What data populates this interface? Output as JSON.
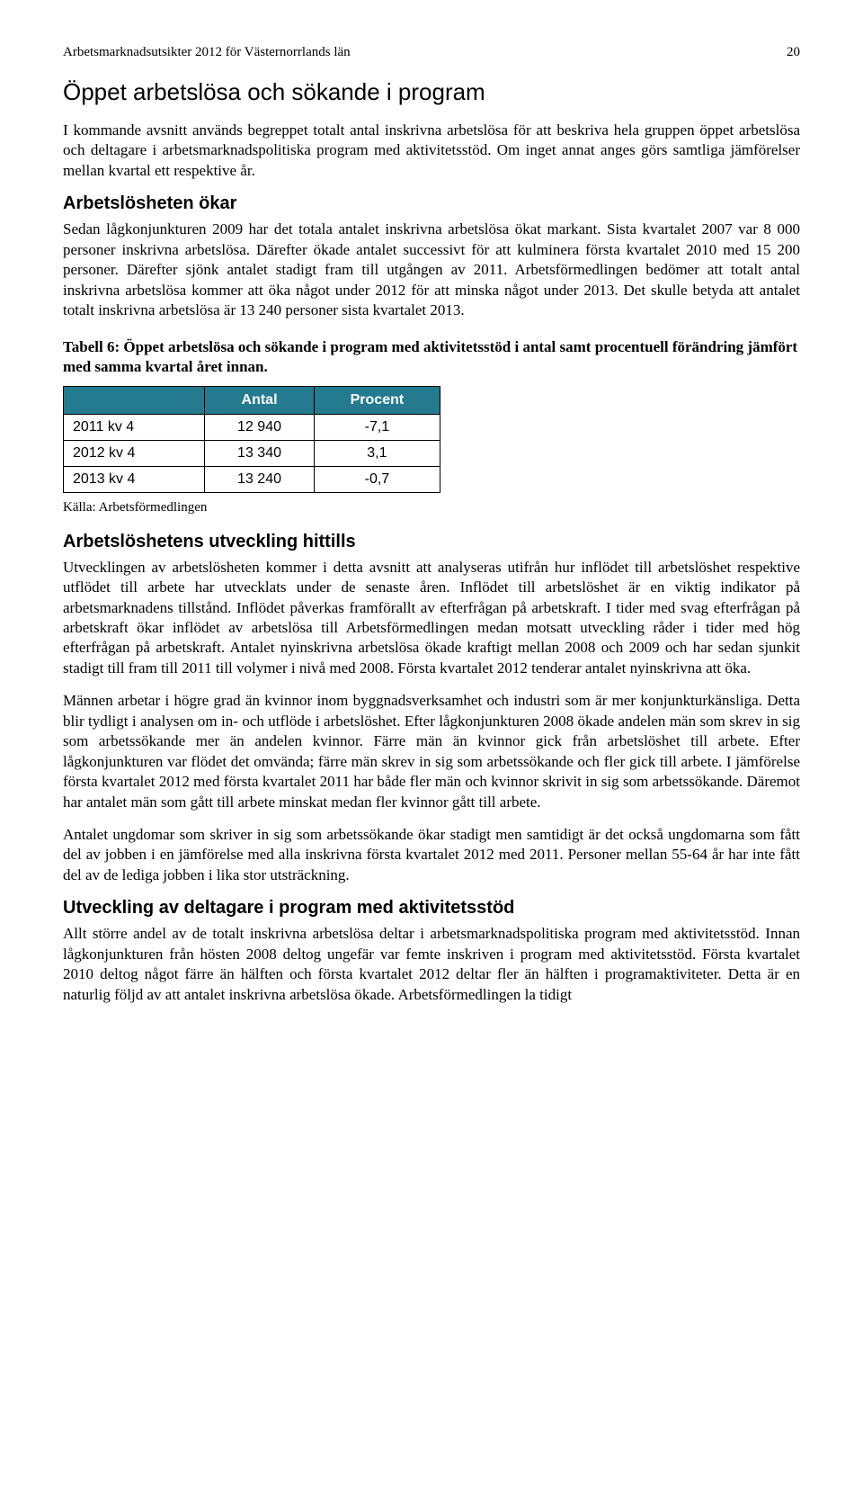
{
  "header": {
    "title": "Arbetsmarknadsutsikter 2012 för Västernorrlands län",
    "page_number": "20"
  },
  "section1": {
    "title": "Öppet arbetslösa och sökande i program",
    "intro": "I kommande avsnitt används begreppet totalt antal inskrivna arbetslösa för att beskriva hela gruppen öppet arbetslösa och deltagare i arbetsmarknadspolitiska program med aktivitetsstöd. Om inget annat anges görs samtliga jämförelser mellan kvartal ett respektive år."
  },
  "section2": {
    "title": "Arbetslösheten ökar",
    "body": "Sedan lågkonjunkturen 2009 har det totala antalet inskrivna arbetslösa ökat markant. Sista kvartalet 2007 var 8 000 personer inskrivna arbetslösa. Därefter ökade antalet successivt för att kulminera första kvartalet 2010 med 15 200 personer. Därefter sjönk antalet stadigt fram till utgången av 2011. Arbetsförmedlingen bedömer att totalt antal inskrivna arbetslösa kommer att öka något under 2012 för att minska något under 2013. Det skulle betyda att antalet totalt inskrivna arbetslösa är 13 240 personer sista kvartalet 2013."
  },
  "table6": {
    "caption": "Tabell 6: Öppet arbetslösa och sökande i program med aktivitetsstöd i antal samt procentuell förändring jämfört med samma kvartal året innan.",
    "columns": [
      "",
      "Antal",
      "Procent"
    ],
    "header_bg": "#247a8e",
    "header_fg": "#ffffff",
    "rows": [
      [
        "2011 kv 4",
        "12 940",
        "-7,1"
      ],
      [
        "2012 kv 4",
        "13 340",
        "3,1"
      ],
      [
        "2013 kv 4",
        "13 240",
        "-0,7"
      ]
    ],
    "source": "Källa: Arbetsförmedlingen"
  },
  "section3": {
    "title": "Arbetslöshetens utveckling hittills",
    "p1": "Utvecklingen av arbetslösheten kommer i detta avsnitt att analyseras utifrån hur inflödet till arbetslöshet respektive utflödet till arbete har utvecklats under de senaste åren. Inflödet till arbetslöshet är en viktig indikator på arbetsmarknadens tillstånd. Inflödet påverkas framförallt av efterfrågan på arbetskraft. I tider med svag efterfrågan på arbetskraft ökar inflödet av arbetslösa till Arbetsförmedlingen medan motsatt utveckling råder i tider med hög efterfrågan på arbetskraft. Antalet nyinskrivna arbetslösa ökade kraftigt mellan 2008 och 2009 och har sedan sjunkit stadigt till fram till 2011 till volymer i nivå med 2008. Första kvartalet 2012 tenderar antalet nyinskrivna att öka.",
    "p2": "Männen arbetar i högre grad än kvinnor inom byggnadsverksamhet och industri som är mer konjunkturkänsliga. Detta blir tydligt i analysen om in- och utflöde i arbetslöshet. Efter lågkonjunkturen 2008 ökade andelen män som skrev in sig som arbetssökande mer än andelen kvinnor. Färre män än kvinnor gick från arbetslöshet till arbete. Efter lågkonjunkturen var flödet det omvända; färre män skrev in sig som arbetssökande och fler gick till arbete. I jämförelse första kvartalet 2012 med första kvartalet 2011 har både fler män och kvinnor skrivit in sig som arbetssökande. Däremot har antalet män som gått till arbete minskat medan fler kvinnor gått till arbete.",
    "p3": "Antalet ungdomar som skriver in sig som arbetssökande ökar stadigt men samtidigt är det också ungdomarna som fått del av jobben i en jämförelse med alla inskrivna första kvartalet 2012 med 2011. Personer mellan 55-64 år har inte fått del av de lediga jobben i lika stor utsträckning."
  },
  "section4": {
    "title": "Utveckling av deltagare i program med aktivitetsstöd",
    "body": "Allt större andel av de totalt inskrivna arbetslösa deltar i arbetsmarknadspolitiska program med aktivitetsstöd. Innan lågkonjunkturen från hösten 2008 deltog ungefär var femte inskriven i program med aktivitetsstöd. Första kvartalet 2010 deltog något färre än hälften och första kvartalet 2012 deltar fler än hälften i programaktiviteter. Detta är en naturlig följd av att antalet inskrivna arbetslösa ökade. Arbetsförmedlingen la tidigt"
  }
}
